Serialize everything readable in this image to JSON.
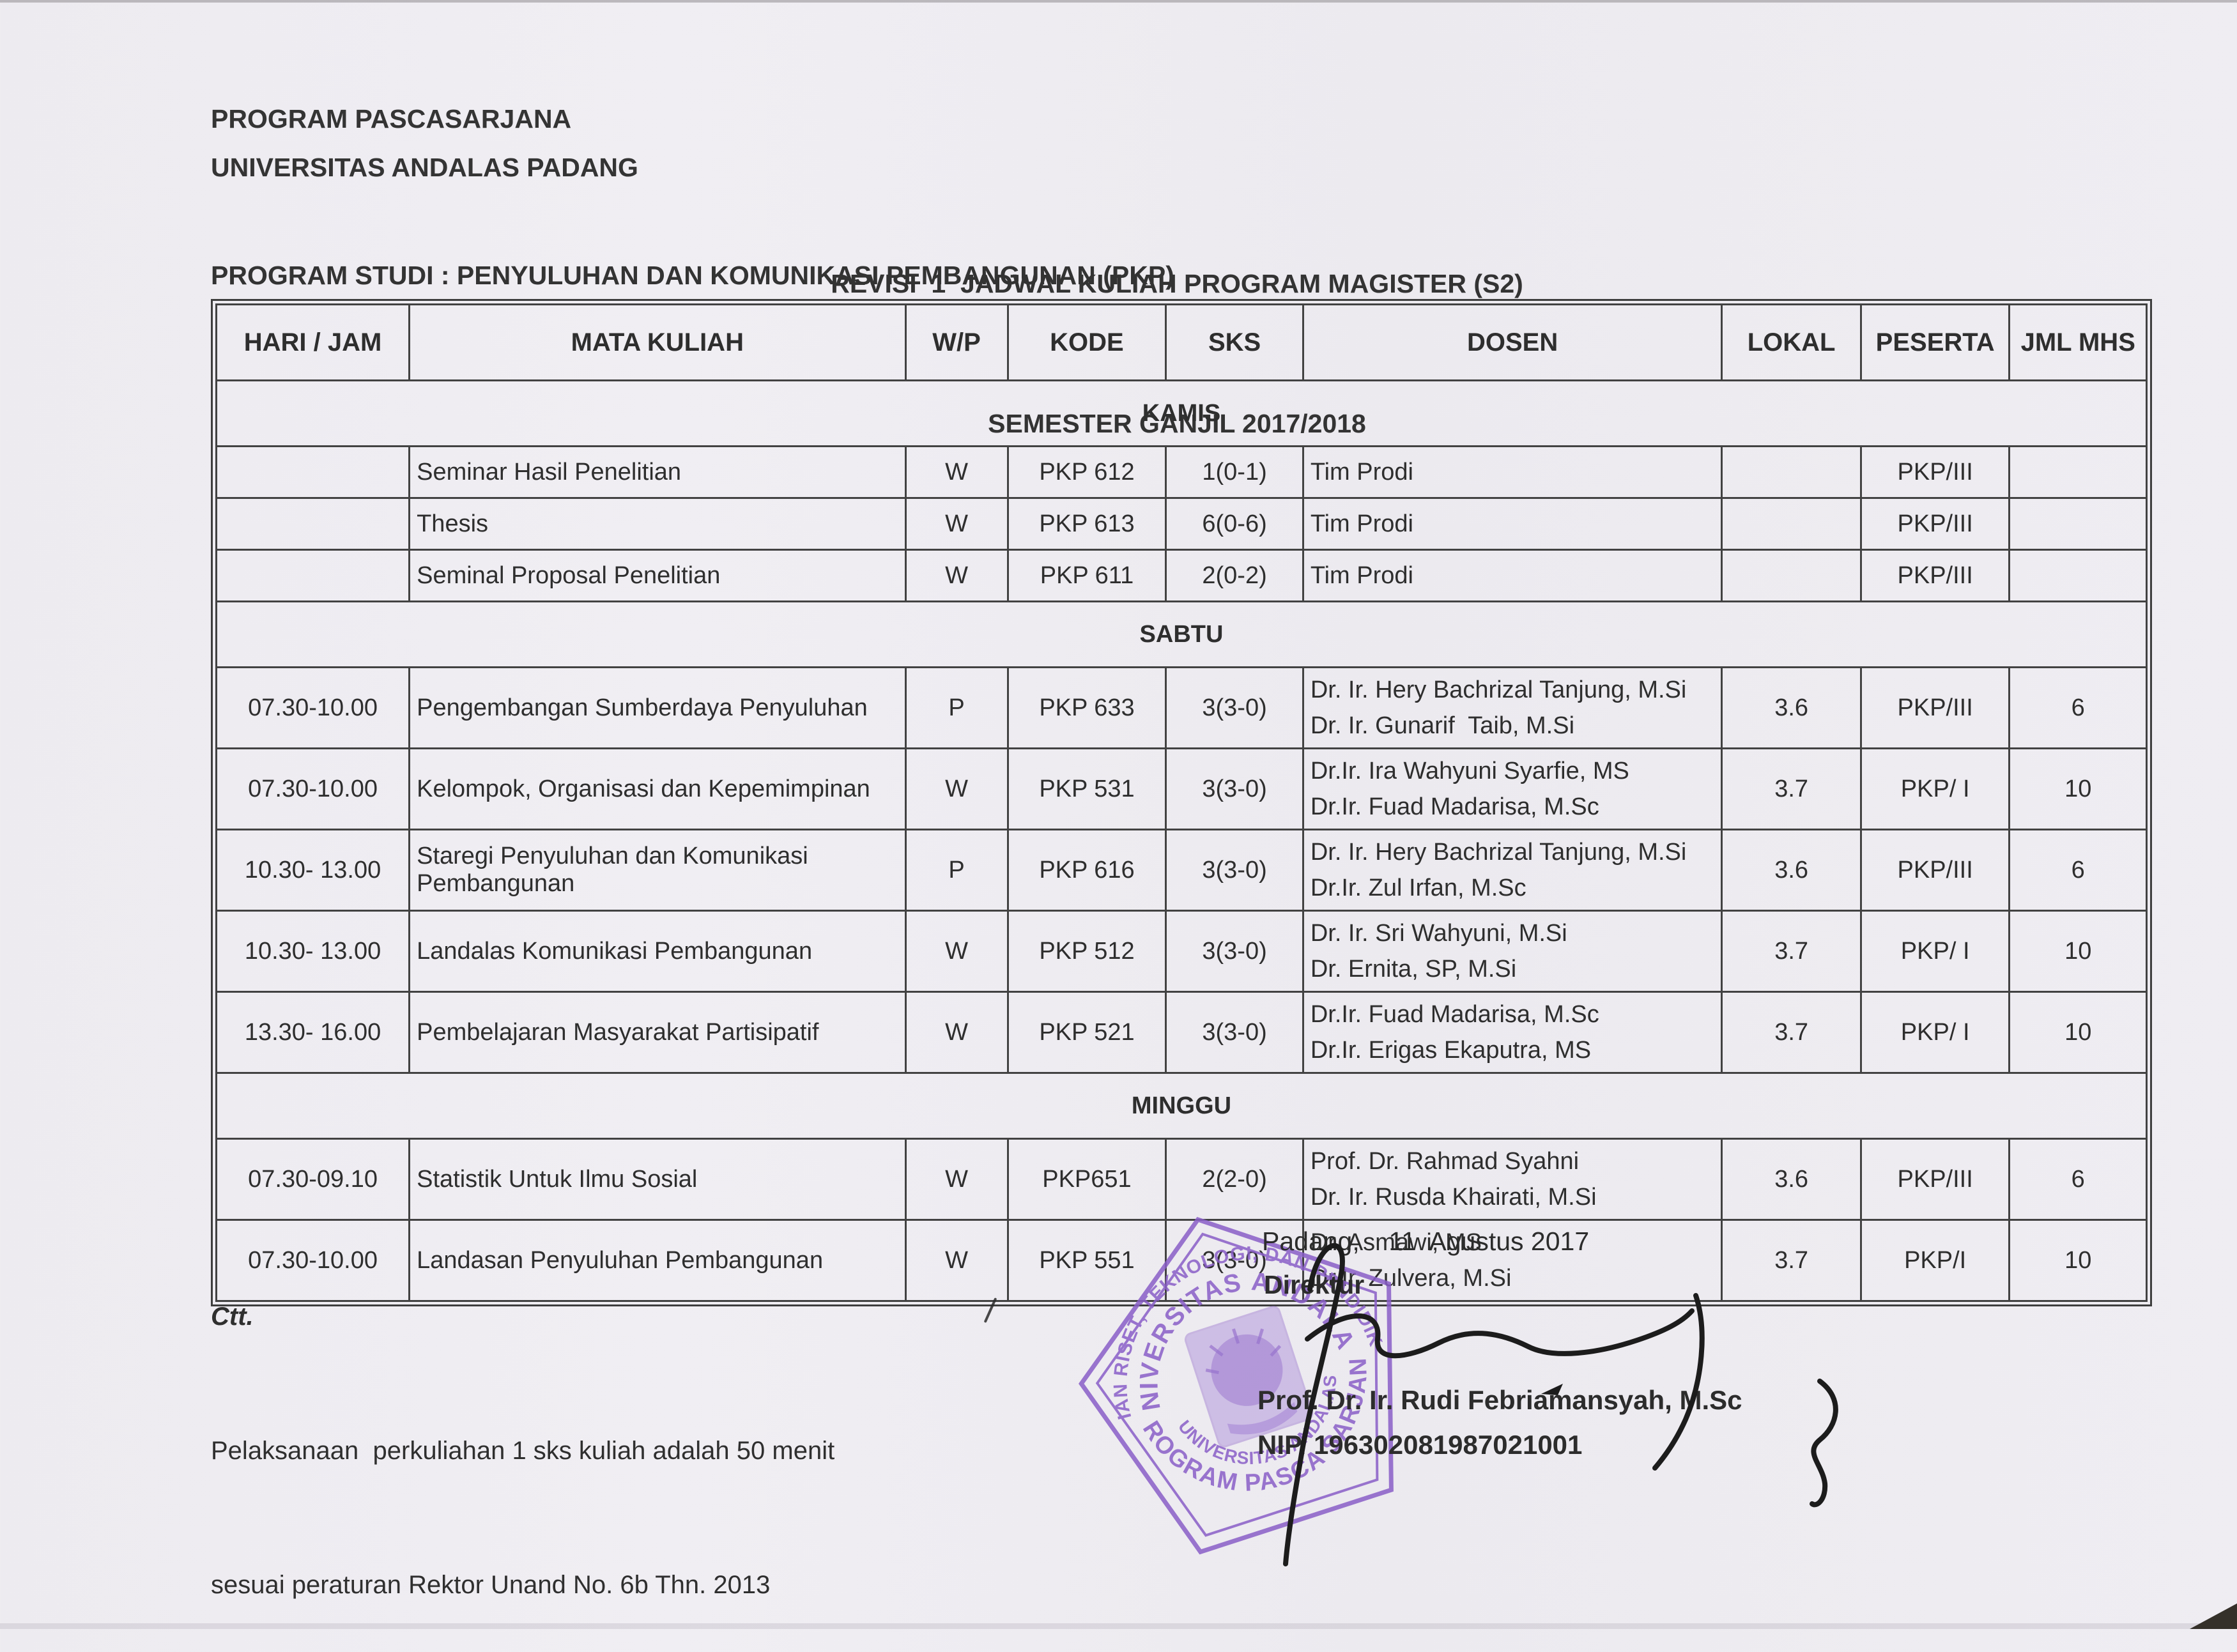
{
  "header": {
    "org_line1": "PROGRAM PASCASARJANA",
    "org_line2": "UNIVERSITAS ANDALAS PADANG",
    "title_line1": "REVISI  1  JADWAL KULIAH PROGRAM MAGISTER (S2)",
    "title_line2": "SEMESTER GANJIL 2017/2018",
    "program_studi": "PROGRAM STUDI : PENYULUHAN DAN KOMUNIKASI PEMBANGUNAN (PKP)"
  },
  "table": {
    "columns": [
      "HARI / JAM",
      "MATA KULIAH",
      "W/P",
      "KODE",
      "SKS",
      "DOSEN",
      "LOKAL",
      "PESERTA",
      "JML MHS"
    ],
    "sections": [
      {
        "day": "KAMIS",
        "rows": [
          {
            "jam": "",
            "mata_kuliah": "Seminar Hasil Penelitian",
            "wp": "W",
            "kode": "PKP 612",
            "sks": "1(0-1)",
            "dosen": [
              "Tim Prodi"
            ],
            "lokal": "",
            "peserta": "PKP/III",
            "jml_mhs": ""
          },
          {
            "jam": "",
            "mata_kuliah": "Thesis",
            "wp": "W",
            "kode": "PKP 613",
            "sks": "6(0-6)",
            "dosen": [
              "Tim Prodi"
            ],
            "lokal": "",
            "peserta": "PKP/III",
            "jml_mhs": ""
          },
          {
            "jam": "",
            "mata_kuliah": "Seminal Proposal Penelitian",
            "wp": "W",
            "kode": "PKP 611",
            "sks": "2(0-2)",
            "dosen": [
              "Tim Prodi"
            ],
            "lokal": "",
            "peserta": "PKP/III",
            "jml_mhs": ""
          }
        ]
      },
      {
        "day": "SABTU",
        "rows": [
          {
            "jam": "07.30-10.00",
            "mata_kuliah": "Pengembangan Sumberdaya Penyuluhan",
            "wp": "P",
            "kode": "PKP 633",
            "sks": "3(3-0)",
            "dosen": [
              "Dr. Ir. Hery Bachrizal Tanjung, M.Si",
              "Dr. Ir. Gunarif  Taib, M.Si"
            ],
            "lokal": "3.6",
            "peserta": "PKP/III",
            "jml_mhs": "6"
          },
          {
            "jam": "07.30-10.00",
            "mata_kuliah": "Kelompok, Organisasi dan Kepemimpinan",
            "wp": "W",
            "kode": "PKP 531",
            "sks": "3(3-0)",
            "dosen": [
              "Dr.Ir. Ira Wahyuni Syarfie, MS",
              "Dr.Ir. Fuad Madarisa, M.Sc"
            ],
            "lokal": "3.7",
            "peserta": "PKP/ I",
            "jml_mhs": "10"
          },
          {
            "jam": "10.30- 13.00",
            "mata_kuliah": "Staregi Penyuluhan dan Komunikasi Pembangunan",
            "wp": "P",
            "kode": "PKP 616",
            "sks": "3(3-0)",
            "dosen": [
              "Dr. Ir. Hery Bachrizal Tanjung, M.Si",
              "Dr.Ir. Zul Irfan, M.Sc"
            ],
            "lokal": "3.6",
            "peserta": "PKP/III",
            "jml_mhs": "6"
          },
          {
            "jam": "10.30- 13.00",
            "mata_kuliah": "Landalas Komunikasi Pembangunan",
            "wp": "W",
            "kode": "PKP 512",
            "sks": "3(3-0)",
            "dosen": [
              "Dr. Ir. Sri Wahyuni, M.Si",
              "Dr. Ernita, SP, M.Si"
            ],
            "lokal": "3.7",
            "peserta": "PKP/ I",
            "jml_mhs": "10"
          },
          {
            "jam": "13.30- 16.00",
            "mata_kuliah": "Pembelajaran Masyarakat Partisipatif",
            "wp": "W",
            "kode": "PKP 521",
            "sks": "3(3-0)",
            "dosen": [
              "Dr.Ir. Fuad Madarisa, M.Sc",
              "Dr.Ir. Erigas Ekaputra, MS"
            ],
            "lokal": "3.7",
            "peserta": "PKP/ I",
            "jml_mhs": "10"
          }
        ]
      },
      {
        "day": "MINGGU",
        "rows": [
          {
            "jam": "07.30-09.10",
            "mata_kuliah": "Statistik Untuk Ilmu Sosial",
            "wp": "W",
            "kode": "PKP651",
            "sks": "2(2-0)",
            "dosen": [
              "Prof. Dr. Rahmad Syahni",
              "Dr. Ir. Rusda Khairati, M.Si"
            ],
            "lokal": "3.6",
            "peserta": "PKP/III",
            "jml_mhs": "6"
          },
          {
            "jam": "07.30-10.00",
            "mata_kuliah": "Landasan Penyuluhan Pembangunan",
            "wp": "W",
            "kode": "PKP 551",
            "sks": "3(3-0)",
            "dosen": [
              "Dr. Asmawi, MS",
              "Dr.Ir. Zulvera, M.Si"
            ],
            "lokal": "3.7",
            "peserta": "PKP/I",
            "jml_mhs": "10"
          }
        ]
      }
    ]
  },
  "footer": {
    "note_title": "Ctt.",
    "note_line1": "Pelaksanaan  perkuliahan 1 sks kuliah adalah 50 menit",
    "note_line2": "sesuai peraturan Rektor Unand No. 6b Thn. 2013",
    "place_date": "Padang,    11  Agustus 2017",
    "role": "Direktur",
    "signer_name": "Prof. Dr. Ir. Rudi Febriamansyah, M.Sc",
    "signer_nip": "NIP. 196302081987021001",
    "stamp": {
      "arc_top": "KEMENTERIAN RISET, TEKNOLOGI, DAN PENDIDIKAN TINGGI",
      "arc_top_inner": "UNIVERSITAS ANDALAS",
      "arc_bottom": "PROGRAM PASCA SARJANA",
      "arc_bottom_inner": "UNIVERSITAS ANDALAS",
      "color": "#8a5fc8"
    }
  },
  "colors": {
    "paper": "#eeecf1",
    "ink": "#2d2d2d",
    "table_border": "#424242",
    "stamp_purple": "#8a5fc8",
    "signature_ink": "#1c1c1c"
  }
}
